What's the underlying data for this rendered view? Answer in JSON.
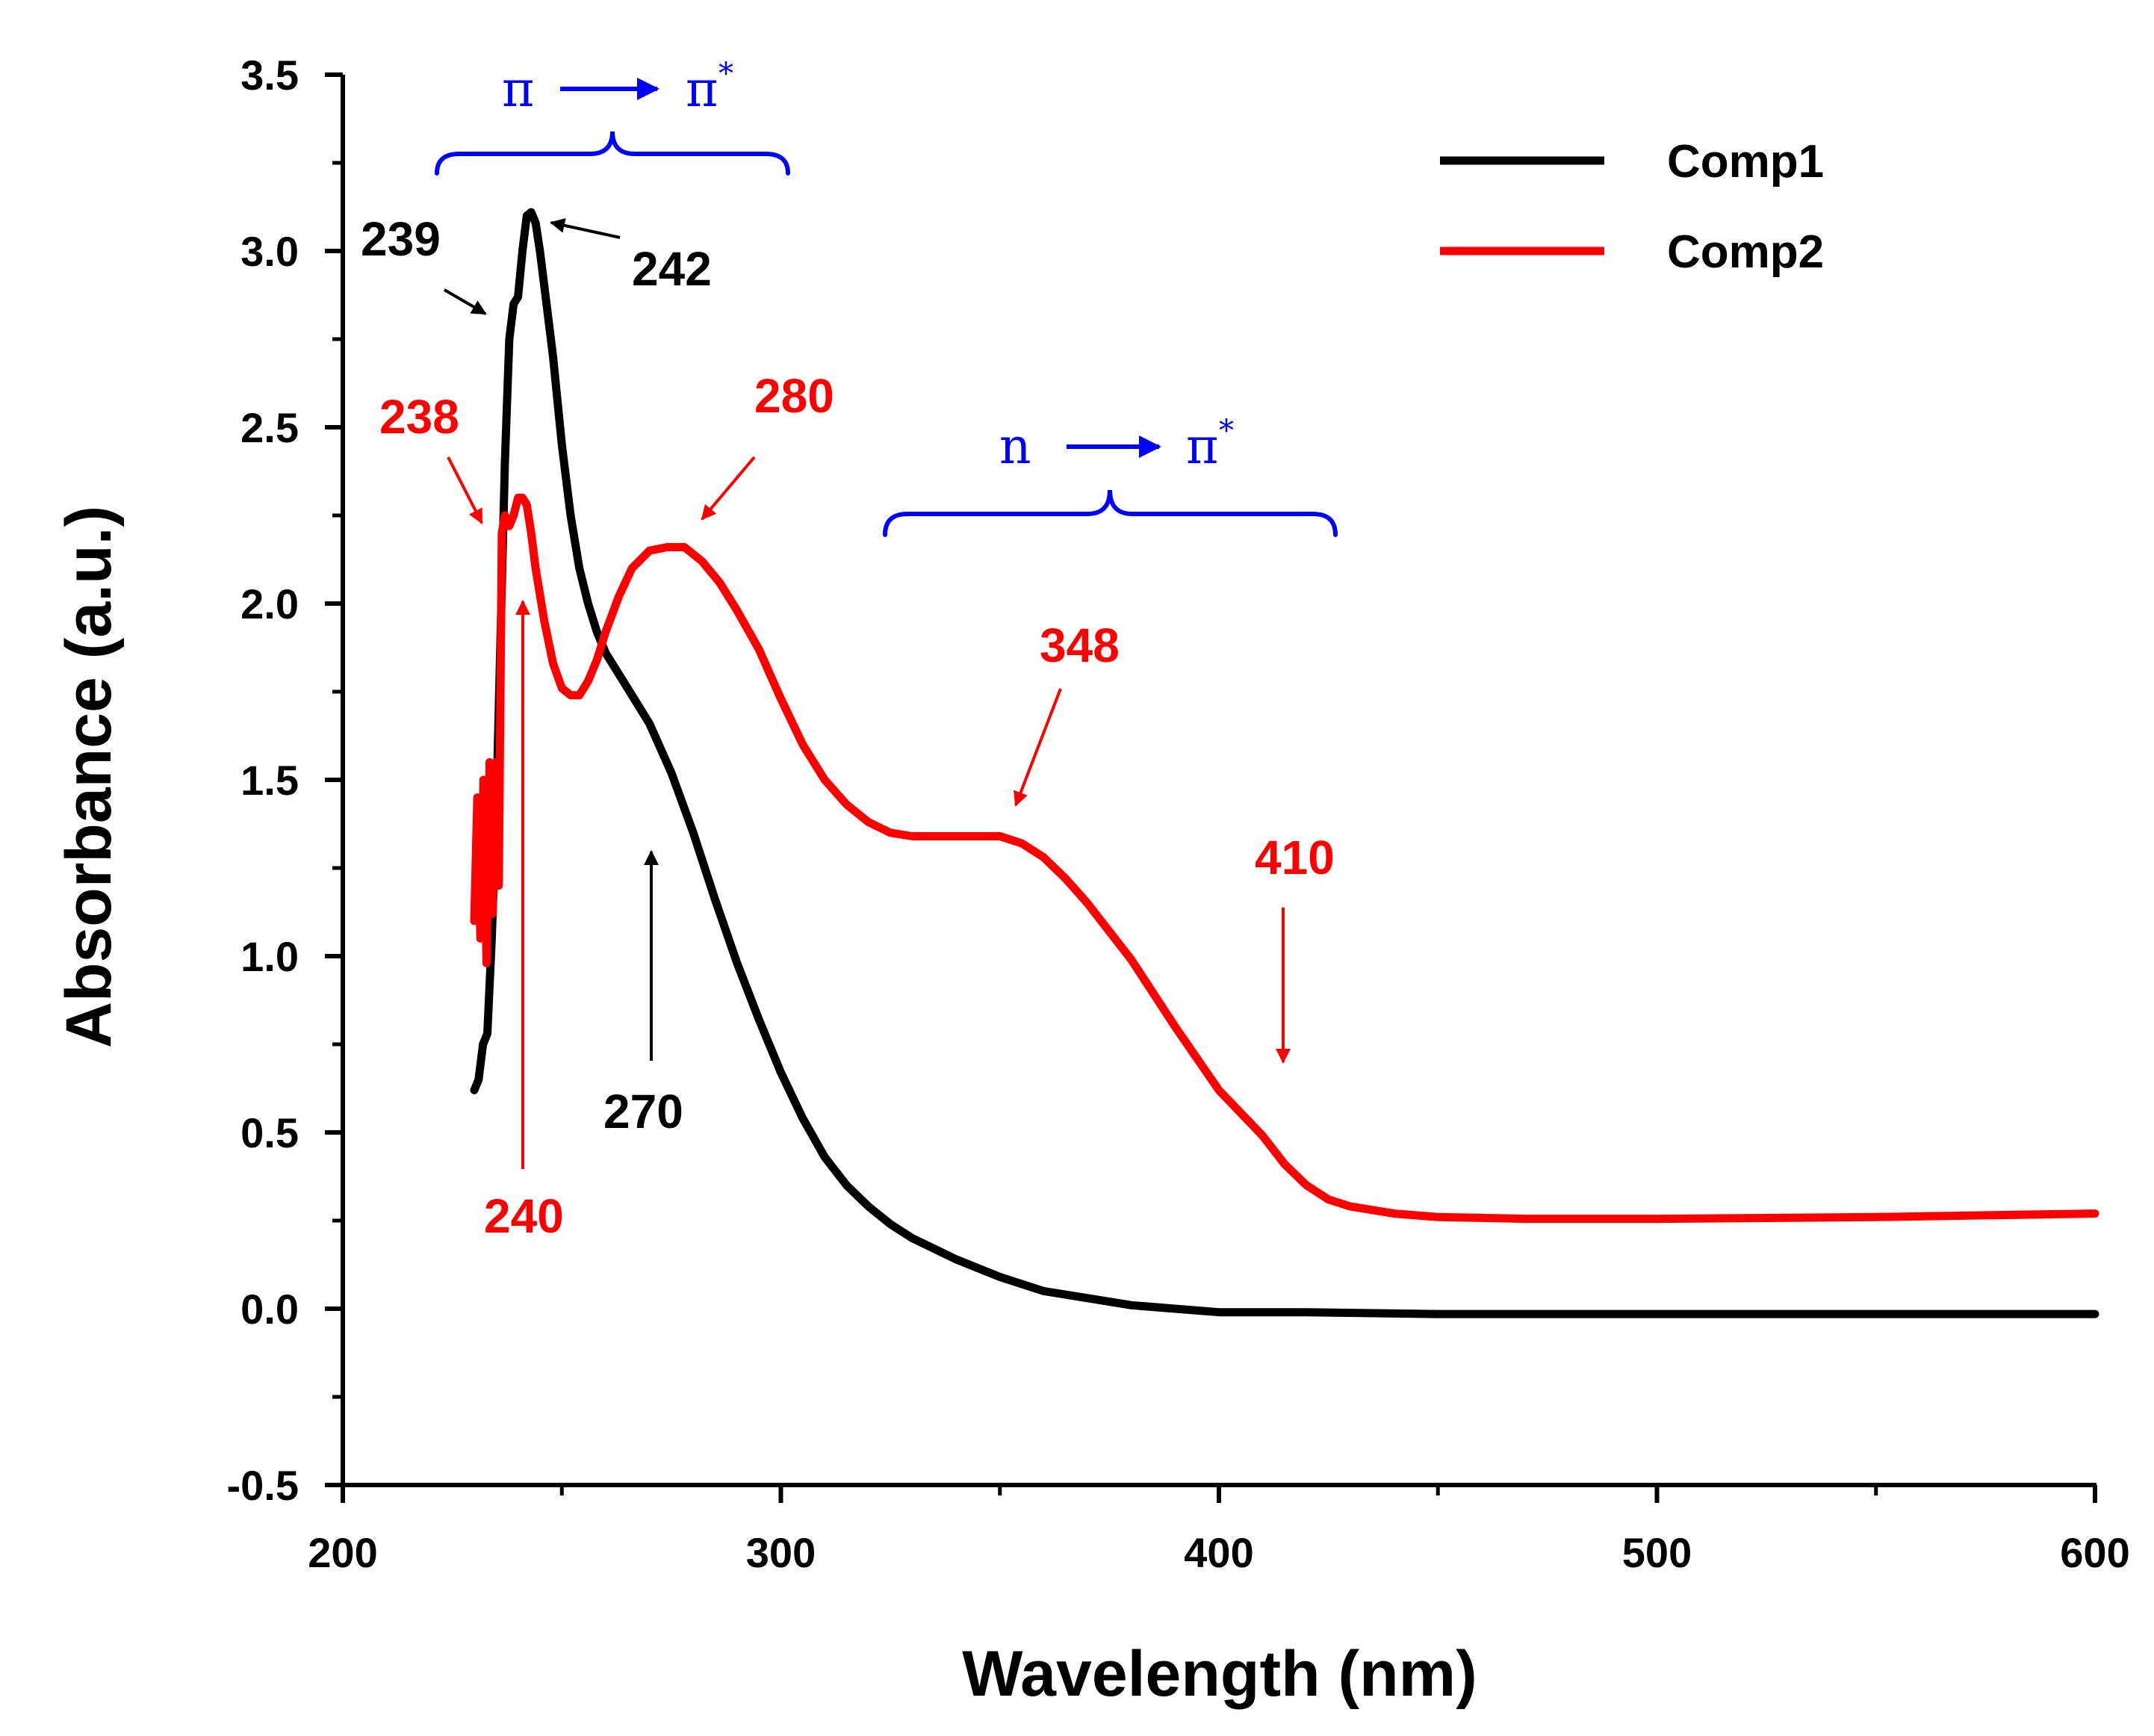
{
  "chart_data": {
    "type": "line",
    "title": "",
    "xlabel": "Wavelength (nm)",
    "ylabel": "Absorbance (a.u.)",
    "xlim": [
      200,
      600
    ],
    "ylim": [
      -0.5,
      3.5
    ],
    "xticks": [
      "200",
      "300",
      "400",
      "500",
      "600"
    ],
    "yticks": [
      "-0.5",
      "0.0",
      "0.5",
      "1.0",
      "1.5",
      "2.0",
      "2.5",
      "3.0",
      "3.5"
    ],
    "grid": false,
    "legend_position": "top-right",
    "series": [
      {
        "name": "Comp1",
        "color": "#000000",
        "x": [
          230,
          231,
          232,
          233,
          234,
          235,
          236,
          237,
          238,
          239,
          240,
          241,
          242,
          243,
          244,
          245,
          246,
          248,
          250,
          252,
          254,
          256,
          258,
          260,
          263,
          266,
          270,
          275,
          280,
          285,
          290,
          295,
          300,
          305,
          310,
          315,
          320,
          325,
          330,
          340,
          350,
          360,
          370,
          380,
          400,
          420,
          450,
          500,
          550,
          600
        ],
        "y": [
          0.62,
          0.65,
          0.75,
          0.78,
          1.05,
          1.4,
          1.9,
          2.4,
          2.75,
          2.85,
          2.87,
          3.0,
          3.1,
          3.11,
          3.08,
          3.0,
          2.9,
          2.7,
          2.45,
          2.25,
          2.1,
          2.0,
          1.92,
          1.86,
          1.8,
          1.74,
          1.66,
          1.52,
          1.35,
          1.16,
          0.98,
          0.82,
          0.67,
          0.54,
          0.43,
          0.35,
          0.29,
          0.24,
          0.2,
          0.14,
          0.09,
          0.05,
          0.03,
          0.01,
          -0.01,
          -0.01,
          -0.015,
          -0.015,
          -0.015,
          -0.015
        ]
      },
      {
        "name": "Comp2",
        "color": "#ff0000",
        "x": [
          230,
          230.7,
          231.4,
          232.1,
          232.8,
          233.5,
          234.2,
          234.9,
          235.6,
          236.3,
          237,
          238,
          239,
          240,
          241,
          242,
          243,
          244,
          246,
          248,
          250,
          252,
          254,
          256,
          258,
          260,
          263,
          266,
          270,
          274,
          278,
          282,
          286,
          290,
          295,
          300,
          305,
          310,
          315,
          320,
          325,
          330,
          335,
          340,
          345,
          350,
          355,
          360,
          365,
          370,
          380,
          390,
          400,
          410,
          415,
          420,
          425,
          430,
          440,
          450,
          470,
          500,
          550,
          600
        ],
        "y": [
          1.1,
          1.45,
          1.05,
          1.5,
          0.98,
          1.55,
          1.12,
          1.55,
          1.2,
          2.2,
          2.25,
          2.22,
          2.25,
          2.3,
          2.3,
          2.28,
          2.2,
          2.1,
          1.95,
          1.83,
          1.76,
          1.74,
          1.74,
          1.78,
          1.84,
          1.92,
          2.02,
          2.1,
          2.15,
          2.16,
          2.16,
          2.12,
          2.06,
          1.98,
          1.87,
          1.73,
          1.6,
          1.5,
          1.43,
          1.38,
          1.35,
          1.34,
          1.34,
          1.34,
          1.34,
          1.34,
          1.32,
          1.28,
          1.22,
          1.15,
          0.99,
          0.8,
          0.62,
          0.49,
          0.41,
          0.35,
          0.31,
          0.29,
          0.27,
          0.26,
          0.255,
          0.255,
          0.26,
          0.27
        ]
      }
    ],
    "annotations": [
      {
        "id": "ann-239",
        "text": "239",
        "color": "#000000"
      },
      {
        "id": "ann-242",
        "text": "242",
        "color": "#000000"
      },
      {
        "id": "ann-270",
        "text": "270",
        "color": "#000000"
      },
      {
        "id": "ann-238",
        "text": "238",
        "color": "#ff0000"
      },
      {
        "id": "ann-240",
        "text": "240",
        "color": "#ff0000"
      },
      {
        "id": "ann-280",
        "text": "280",
        "color": "#ff0000"
      },
      {
        "id": "ann-348",
        "text": "348",
        "color": "#ff0000"
      },
      {
        "id": "ann-410",
        "text": "410",
        "color": "#ff0000"
      }
    ],
    "transitions": [
      {
        "id": "pi-pi-star",
        "from": "π",
        "to": "π",
        "sup": "*",
        "color": "#0000ff"
      },
      {
        "id": "n-pi-star",
        "from": "n",
        "to": "π",
        "sup": "*",
        "color": "#0000ff"
      }
    ]
  }
}
